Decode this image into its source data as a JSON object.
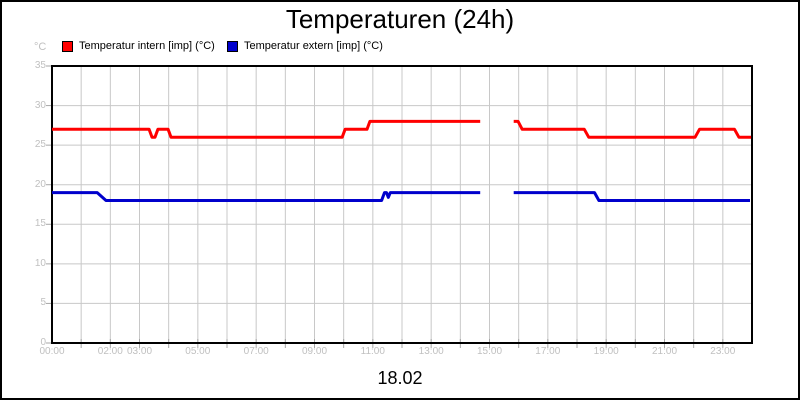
{
  "title": "Temperaturen (24h)",
  "date_label": "18.02",
  "legend": [
    {
      "label": "Temperatur intern [imp] (°C)",
      "color": "#ff0000"
    },
    {
      "label": "Temperatur extern [imp] (°C)",
      "color": "#0000cc"
    }
  ],
  "colors": {
    "grid": "#c8c8c8",
    "plot_border": "#000000",
    "tick_mark": "#a6a6a6",
    "tick_label": "#c0c0c0",
    "series_intern": "#ff0000",
    "series_extern": "#0000cc",
    "background": "#ffffff"
  },
  "chart_data": {
    "type": "line",
    "title": "Temperaturen (24h)",
    "xlabel": "18.02",
    "ylabel": "°C",
    "xlim": [
      0,
      24
    ],
    "ylim": [
      0,
      35
    ],
    "grid": true,
    "legend_position": "top",
    "x_ticks": [
      {
        "t": 0,
        "label": "00:00"
      },
      {
        "t": 2,
        "label": "02:00"
      },
      {
        "t": 3,
        "label": "03:00"
      },
      {
        "t": 5,
        "label": "05:00"
      },
      {
        "t": 7,
        "label": "07:00"
      },
      {
        "t": 9,
        "label": "09:00"
      },
      {
        "t": 11,
        "label": "11:00"
      },
      {
        "t": 13,
        "label": "13:00"
      },
      {
        "t": 15,
        "label": "15:00"
      },
      {
        "t": 17,
        "label": "17:00"
      },
      {
        "t": 19,
        "label": "19:00"
      },
      {
        "t": 21,
        "label": "21:00"
      },
      {
        "t": 23,
        "label": "23:00"
      }
    ],
    "y_ticks": [
      0,
      5,
      10,
      15,
      20,
      25,
      30,
      35
    ],
    "minor_x_grid_every_hours": 1,
    "series": [
      {
        "name": "Temperatur intern [imp] (°C)",
        "color": "#ff0000",
        "segments": [
          [
            [
              0,
              27
            ],
            [
              3.33,
              27
            ],
            [
              3.43,
              26
            ],
            [
              3.53,
              26
            ],
            [
              3.63,
              27
            ],
            [
              3.98,
              27
            ],
            [
              4.08,
              26
            ],
            [
              9.95,
              26
            ],
            [
              10.05,
              27
            ],
            [
              10.8,
              27
            ],
            [
              10.9,
              28
            ],
            [
              14.68,
              28
            ]
          ],
          [
            [
              15.83,
              28
            ],
            [
              15.98,
              28
            ],
            [
              16.12,
              27
            ],
            [
              18.25,
              27
            ],
            [
              18.4,
              26
            ],
            [
              22.05,
              26
            ],
            [
              22.2,
              27
            ],
            [
              23.4,
              27
            ],
            [
              23.55,
              26
            ],
            [
              23.97,
              26
            ]
          ]
        ]
      },
      {
        "name": "Temperatur extern [imp] (°C)",
        "color": "#0000cc",
        "segments": [
          [
            [
              0,
              19
            ],
            [
              1.55,
              19
            ],
            [
              1.85,
              18
            ],
            [
              11.3,
              18
            ],
            [
              11.4,
              19
            ],
            [
              11.47,
              19
            ],
            [
              11.53,
              18.4
            ],
            [
              11.6,
              19
            ],
            [
              14.68,
              19
            ]
          ],
          [
            [
              15.83,
              19
            ],
            [
              18.6,
              19
            ],
            [
              18.75,
              18
            ],
            [
              23.93,
              18
            ]
          ]
        ]
      }
    ]
  }
}
